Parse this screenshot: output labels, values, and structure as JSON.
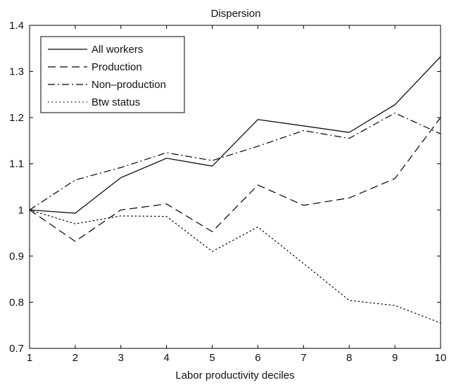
{
  "chart_data": {
    "type": "line",
    "title": "Dispersion",
    "xlabel": "Labor productivity deciles",
    "ylabel": "",
    "xlim": [
      1,
      10
    ],
    "ylim": [
      0.7,
      1.4
    ],
    "x": [
      1,
      2,
      3,
      4,
      5,
      6,
      7,
      8,
      9,
      10
    ],
    "xticks": [
      "1",
      "2",
      "3",
      "4",
      "5",
      "6",
      "7",
      "8",
      "9",
      "10"
    ],
    "yticks": [
      "0.7",
      "0.8",
      "0.9",
      "1",
      "1.1",
      "1.2",
      "1.3",
      "1.4"
    ],
    "grid": false,
    "legend_position": "top-left",
    "series": [
      {
        "name": "All workers",
        "style": "solid",
        "values": [
          1.0,
          0.993,
          1.07,
          1.112,
          1.095,
          1.196,
          1.182,
          1.168,
          1.228,
          1.332
        ]
      },
      {
        "name": "Production",
        "style": "dashed",
        "values": [
          1.0,
          0.932,
          1.0,
          1.013,
          0.953,
          1.054,
          1.01,
          1.026,
          1.068,
          1.2
        ]
      },
      {
        "name": "Non–production",
        "style": "dashdot",
        "values": [
          1.0,
          1.065,
          1.092,
          1.124,
          1.107,
          1.138,
          1.172,
          1.155,
          1.21,
          1.165
        ]
      },
      {
        "name": "Btw status",
        "style": "dotted",
        "values": [
          1.0,
          0.97,
          0.987,
          0.986,
          0.91,
          0.963,
          0.884,
          0.804,
          0.793,
          0.755
        ]
      }
    ]
  }
}
